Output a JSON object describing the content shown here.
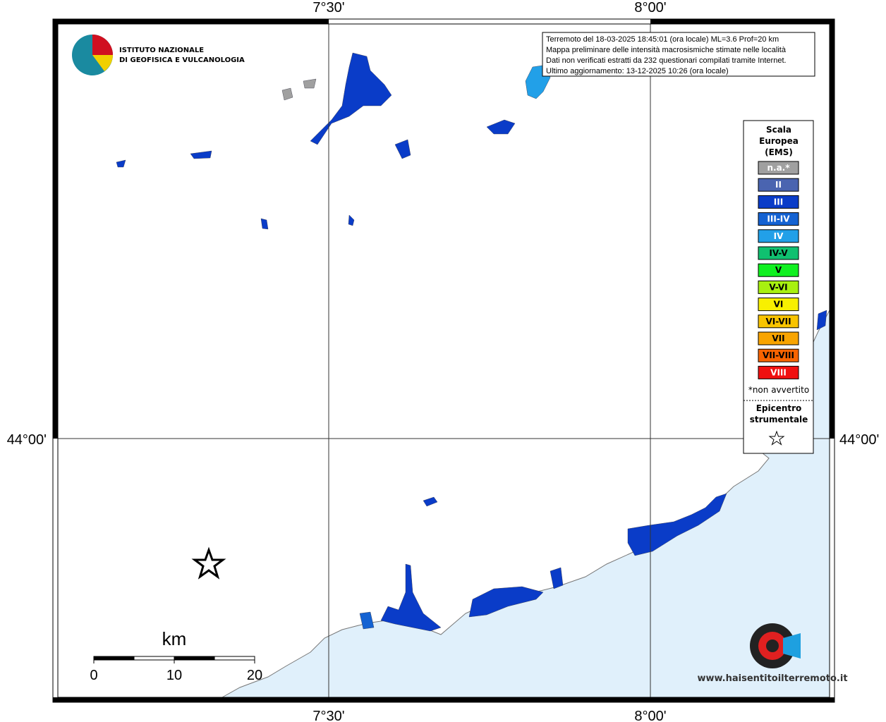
{
  "axes": {
    "x_labels": [
      "7°30'",
      "8°00'"
    ],
    "y_labels": [
      "44°00'"
    ]
  },
  "logo": {
    "line1": "ISTITUTO NAZIONALE",
    "line2": "DI GEOFISICA E VULCANOLOGIA"
  },
  "info": [
    "Terremoto del 18-03-2025 18:45:01 (ora locale) ML=3.6 Prof=20 km",
    "Mappa preliminare delle intensità macrosismiche stimate nelle località",
    "Dati non verificati estratti da 232 questionari compilati tramite Internet.",
    "Ultimo aggiornamento: 13-12-2025 10:26 (ora locale)"
  ],
  "legend": {
    "title": [
      "Scala",
      "Europea",
      "(EMS)"
    ],
    "items": [
      {
        "label": "n.a.*",
        "color": "#a0a0a0",
        "text_color": "#ffffff"
      },
      {
        "label": "II",
        "color": "#4a64b0",
        "text_color": "#ffffff"
      },
      {
        "label": "III",
        "color": "#0a3cc8",
        "text_color": "#ffffff"
      },
      {
        "label": "III-IV",
        "color": "#1462d2",
        "text_color": "#ffffff"
      },
      {
        "label": "IV",
        "color": "#22a0e8",
        "text_color": "#ffffff"
      },
      {
        "label": "IV-V",
        "color": "#10c070",
        "text_color": "#000000"
      },
      {
        "label": "V",
        "color": "#10f020",
        "text_color": "#000000"
      },
      {
        "label": "V-VI",
        "color": "#a8f010",
        "text_color": "#000000"
      },
      {
        "label": "VI",
        "color": "#f8f000",
        "text_color": "#000000"
      },
      {
        "label": "VI-VII",
        "color": "#f8c400",
        "text_color": "#000000"
      },
      {
        "label": "VII",
        "color": "#f8a400",
        "text_color": "#000000"
      },
      {
        "label": "VII-VIII",
        "color": "#f86400",
        "text_color": "#000000"
      },
      {
        "label": "VIII",
        "color": "#f01010",
        "text_color": "#ffffff"
      }
    ],
    "note": "*non avvertito",
    "epicenter": [
      "Epicentro",
      "strumentale"
    ]
  },
  "scale_bar": {
    "unit": "km",
    "ticks": [
      0,
      10,
      20
    ]
  },
  "watermark": "www.haisentitoilterremoto.it"
}
